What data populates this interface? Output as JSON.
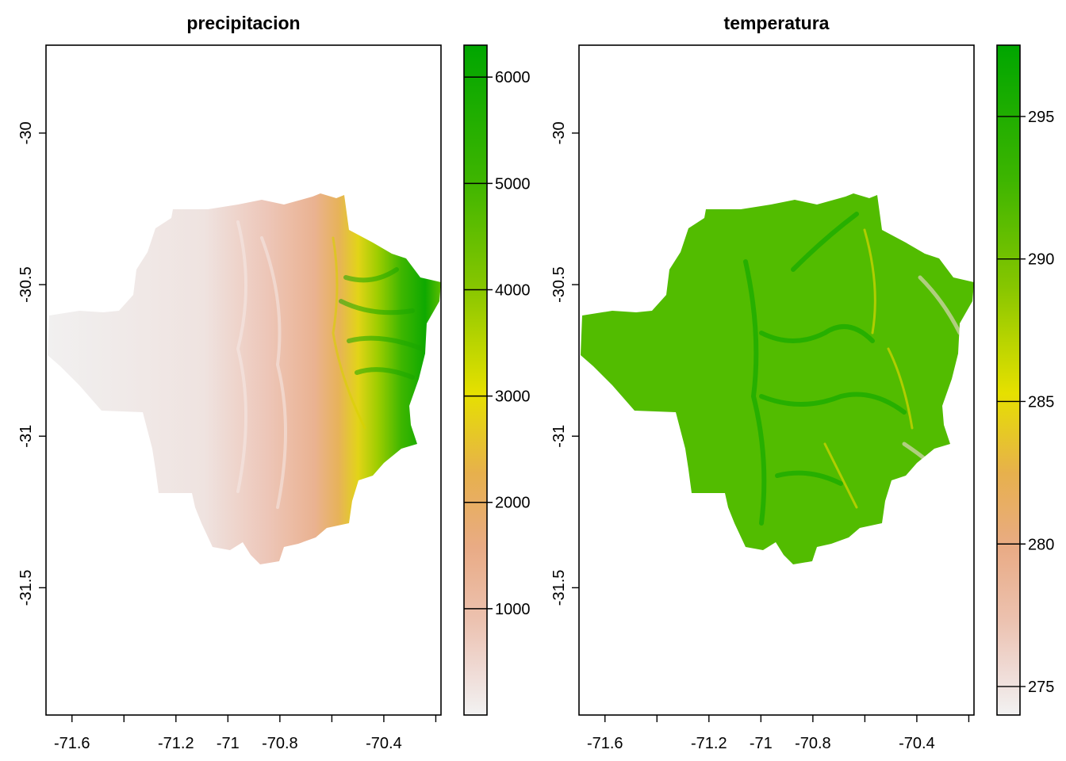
{
  "chart_data": [
    {
      "type": "heatmap",
      "title": "precipitacion",
      "x_ticks": [
        {
          "value": -71.6,
          "label": "-71.6"
        },
        {
          "value": -71.4,
          "label": ""
        },
        {
          "value": -71.2,
          "label": "-71.2"
        },
        {
          "value": -71.0,
          "label": "-71"
        },
        {
          "value": -70.8,
          "label": "-70.8"
        },
        {
          "value": -70.6,
          "label": ""
        },
        {
          "value": -70.4,
          "label": "-70.4"
        },
        {
          "value": -70.2,
          "label": ""
        }
      ],
      "y_ticks": [
        {
          "value": -30.0,
          "label": "-30"
        },
        {
          "value": -30.5,
          "label": "-30.5"
        },
        {
          "value": -31.0,
          "label": "-31"
        },
        {
          "value": -31.5,
          "label": "-31.5"
        }
      ],
      "xlim": [
        -71.7,
        -70.18
      ],
      "ylim": [
        -31.92,
        -29.71
      ],
      "colorbar": {
        "range": [
          0,
          6300
        ],
        "ticks": [
          {
            "value": 1000,
            "label": "1000"
          },
          {
            "value": 2000,
            "label": "2000"
          },
          {
            "value": 3000,
            "label": "3000"
          },
          {
            "value": 4000,
            "label": "4000"
          },
          {
            "value": 5000,
            "label": "5000"
          },
          {
            "value": 6000,
            "label": "6000"
          }
        ],
        "palette": "terrain (low: light grey, high: green)"
      },
      "pattern": "low values (≈0–500) in the western part of the region, rising eastward to ≈6000 along the eastern border near -70.3"
    },
    {
      "type": "heatmap",
      "title": "temperatura",
      "x_ticks": [
        {
          "value": -71.6,
          "label": "-71.6"
        },
        {
          "value": -71.4,
          "label": ""
        },
        {
          "value": -71.2,
          "label": "-71.2"
        },
        {
          "value": -71.0,
          "label": "-71"
        },
        {
          "value": -70.8,
          "label": "-70.8"
        },
        {
          "value": -70.6,
          "label": ""
        },
        {
          "value": -70.4,
          "label": "-70.4"
        },
        {
          "value": -70.2,
          "label": ""
        }
      ],
      "y_ticks": [
        {
          "value": -30.0,
          "label": "-30"
        },
        {
          "value": -30.5,
          "label": "-30.5"
        },
        {
          "value": -31.0,
          "label": "-31"
        },
        {
          "value": -31.5,
          "label": "-31.5"
        }
      ],
      "xlim": [
        -71.7,
        -70.18
      ],
      "ylim": [
        -31.92,
        -29.71
      ],
      "colorbar": {
        "range": [
          274,
          297.5
        ],
        "ticks": [
          {
            "value": 275,
            "label": "275"
          },
          {
            "value": 280,
            "label": "280"
          },
          {
            "value": 285,
            "label": "285"
          },
          {
            "value": 290,
            "label": "290"
          },
          {
            "value": 295,
            "label": "295"
          }
        ],
        "palette": "terrain (low: light grey, high: green)"
      },
      "pattern": "≈290 in the western lowlands, ≈295 in central valleys, dropping to ≈276–282 in the eastern highlands"
    }
  ]
}
